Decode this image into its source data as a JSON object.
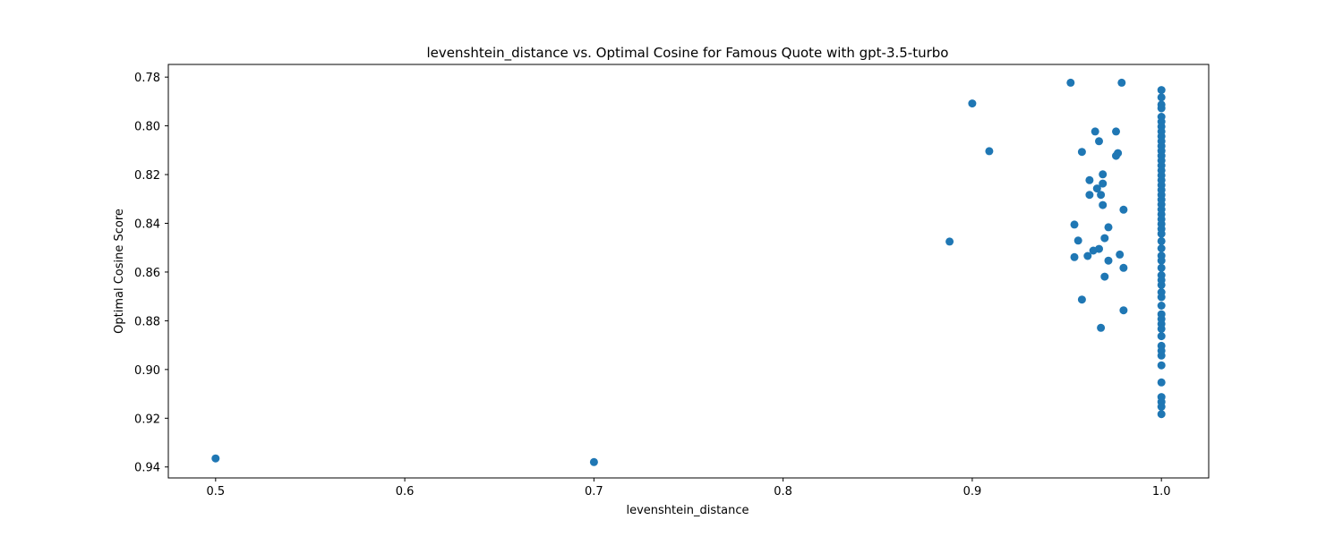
{
  "chart_data": {
    "type": "scatter",
    "title": "levenshtein_distance vs. Optimal Cosine for Famous Quote with gpt-3.5-turbo",
    "xlabel": "levenshtein_distance",
    "ylabel": "Optimal Cosine Score",
    "xlim": [
      0.475,
      1.025
    ],
    "ylim": [
      0.7748,
      0.9445
    ],
    "y_inverted": true,
    "grid": false,
    "xticks": [
      0.5,
      0.6,
      0.7,
      0.8,
      0.9,
      1.0
    ],
    "xtick_labels": [
      "0.5",
      "0.6",
      "0.7",
      "0.8",
      "0.9",
      "1.0"
    ],
    "yticks": [
      0.78,
      0.8,
      0.82,
      0.84,
      0.86,
      0.88,
      0.9,
      0.92,
      0.94
    ],
    "ytick_labels": [
      "0.78",
      "0.80",
      "0.82",
      "0.84",
      "0.86",
      "0.88",
      "0.90",
      "0.92",
      "0.94"
    ],
    "marker_color": "#1f77b4",
    "series": [
      {
        "points": [
          [
            0.5,
            0.9365
          ],
          [
            0.7,
            0.938
          ],
          [
            0.888,
            0.8475
          ],
          [
            0.9,
            0.7908
          ],
          [
            0.909,
            0.8104
          ],
          [
            0.952,
            0.7823
          ],
          [
            0.979,
            0.7823
          ],
          [
            0.954,
            0.8405
          ],
          [
            0.954,
            0.8539
          ],
          [
            0.956,
            0.8471
          ],
          [
            0.958,
            0.8107
          ],
          [
            0.958,
            0.8713
          ],
          [
            0.961,
            0.8534
          ],
          [
            0.962,
            0.8223
          ],
          [
            0.962,
            0.8283
          ],
          [
            0.964,
            0.8512
          ],
          [
            0.965,
            0.8023
          ],
          [
            0.966,
            0.8257
          ],
          [
            0.967,
            0.8063
          ],
          [
            0.967,
            0.8505
          ],
          [
            0.968,
            0.8283
          ],
          [
            0.968,
            0.8829
          ],
          [
            0.969,
            0.8199
          ],
          [
            0.969,
            0.8237
          ],
          [
            0.969,
            0.8325
          ],
          [
            0.97,
            0.8461
          ],
          [
            0.97,
            0.8619
          ],
          [
            0.972,
            0.8416
          ],
          [
            0.972,
            0.8553
          ],
          [
            0.976,
            0.8023
          ],
          [
            0.976,
            0.8123
          ],
          [
            0.977,
            0.8112
          ],
          [
            0.978,
            0.8528
          ],
          [
            0.98,
            0.8344
          ],
          [
            0.98,
            0.8583
          ],
          [
            0.98,
            0.8757
          ],
          [
            1.0,
            0.7853
          ],
          [
            1.0,
            0.7883
          ],
          [
            1.0,
            0.7913
          ],
          [
            1.0,
            0.7928
          ],
          [
            1.0,
            0.7963
          ],
          [
            1.0,
            0.7983
          ],
          [
            1.0,
            0.8003
          ],
          [
            1.0,
            0.8023
          ],
          [
            1.0,
            0.8043
          ],
          [
            1.0,
            0.8063
          ],
          [
            1.0,
            0.8083
          ],
          [
            1.0,
            0.8103
          ],
          [
            1.0,
            0.8123
          ],
          [
            1.0,
            0.8143
          ],
          [
            1.0,
            0.8163
          ],
          [
            1.0,
            0.8183
          ],
          [
            1.0,
            0.8203
          ],
          [
            1.0,
            0.8223
          ],
          [
            1.0,
            0.8243
          ],
          [
            1.0,
            0.8263
          ],
          [
            1.0,
            0.8283
          ],
          [
            1.0,
            0.8303
          ],
          [
            1.0,
            0.8323
          ],
          [
            1.0,
            0.8343
          ],
          [
            1.0,
            0.8363
          ],
          [
            1.0,
            0.8383
          ],
          [
            1.0,
            0.8403
          ],
          [
            1.0,
            0.8423
          ],
          [
            1.0,
            0.8443
          ],
          [
            1.0,
            0.8473
          ],
          [
            1.0,
            0.8503
          ],
          [
            1.0,
            0.8533
          ],
          [
            1.0,
            0.8553
          ],
          [
            1.0,
            0.8583
          ],
          [
            1.0,
            0.8613
          ],
          [
            1.0,
            0.8633
          ],
          [
            1.0,
            0.8653
          ],
          [
            1.0,
            0.8683
          ],
          [
            1.0,
            0.8703
          ],
          [
            1.0,
            0.8738
          ],
          [
            1.0,
            0.8773
          ],
          [
            1.0,
            0.8793
          ],
          [
            1.0,
            0.8813
          ],
          [
            1.0,
            0.8833
          ],
          [
            1.0,
            0.8863
          ],
          [
            1.0,
            0.8903
          ],
          [
            1.0,
            0.8923
          ],
          [
            1.0,
            0.8943
          ],
          [
            1.0,
            0.8983
          ],
          [
            1.0,
            0.9053
          ],
          [
            1.0,
            0.9113
          ],
          [
            1.0,
            0.9133
          ],
          [
            1.0,
            0.9153
          ],
          [
            1.0,
            0.9183
          ]
        ]
      }
    ]
  }
}
